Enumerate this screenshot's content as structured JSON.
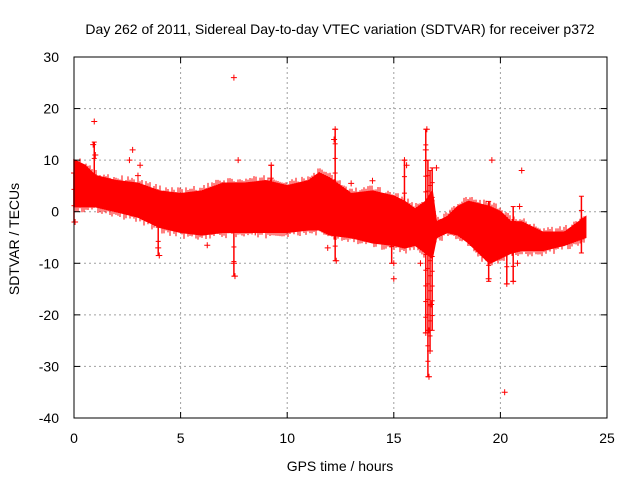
{
  "colors": {
    "series": "#ff0000",
    "axis": "#000000",
    "grid": "#a0a0a0",
    "background": "#ffffff"
  },
  "chart_data": {
    "type": "scatter",
    "title": "Day 262 of 2011, Sidereal Day-to-day VTEC variation (SDTVAR) for receiver p372",
    "xlabel": "GPS time / hours",
    "ylabel": "SDTVAR / TECUs",
    "xlim": [
      0,
      25
    ],
    "ylim": [
      -40,
      30
    ],
    "x_ticks": [
      0,
      5,
      10,
      15,
      20,
      25
    ],
    "x_tick_labels": [
      "0",
      "5",
      "10",
      "15",
      "20",
      "25"
    ],
    "y_ticks": [
      -40,
      -30,
      -20,
      -10,
      0,
      10,
      20,
      30
    ],
    "y_tick_labels": [
      "-40",
      "-30",
      "-20",
      "-10",
      "0",
      "10",
      "20",
      "30"
    ],
    "grid": true,
    "marker": "+",
    "band": {
      "x": [
        0,
        0.5,
        1,
        2,
        3,
        4,
        5,
        6,
        7,
        8,
        9,
        10,
        11,
        11.5,
        12,
        13,
        14,
        15,
        15.5,
        16,
        16.5,
        16.8,
        17,
        17.5,
        18,
        18.5,
        19,
        19.5,
        20,
        20.5,
        21,
        22,
        23,
        24
      ],
      "upper": [
        10,
        9,
        7,
        6,
        5.5,
        4,
        3.5,
        4,
        5.5,
        5.5,
        6,
        5,
        6,
        7.5,
        6.5,
        3.5,
        4,
        3,
        2,
        0.5,
        2,
        4,
        -2,
        -1,
        1,
        2,
        1.5,
        1,
        0,
        -2,
        -2,
        -4,
        -4,
        -1
      ],
      "lower": [
        1,
        1,
        1,
        0,
        -1,
        -3,
        -4,
        -4.5,
        -4,
        -4,
        -4,
        -4,
        -3.5,
        -3.5,
        -4.5,
        -5,
        -6,
        -6.5,
        -7,
        -6.5,
        -8,
        -9,
        -5,
        -4,
        -4.5,
        -6,
        -8,
        -10,
        -9,
        -8,
        -7.5,
        -7.5,
        -6.5,
        -5
      ]
    },
    "outliers": [
      {
        "x": 0.0,
        "y": 7.5
      },
      {
        "x": 0.05,
        "y": -2
      },
      {
        "x": 0.95,
        "y": 17.5
      },
      {
        "x": 0.9,
        "y": 13
      },
      {
        "x": 1.0,
        "y": 11
      },
      {
        "x": 2.75,
        "y": 12
      },
      {
        "x": 2.6,
        "y": 10
      },
      {
        "x": 3.1,
        "y": 9
      },
      {
        "x": 3.0,
        "y": 7
      },
      {
        "x": 3.95,
        "y": -7
      },
      {
        "x": 4.0,
        "y": -8.5
      },
      {
        "x": 6.25,
        "y": -6.5
      },
      {
        "x": 7.5,
        "y": 26
      },
      {
        "x": 7.7,
        "y": 10
      },
      {
        "x": 7.5,
        "y": -10
      },
      {
        "x": 7.55,
        "y": -12.5
      },
      {
        "x": 8.5,
        "y": -4
      },
      {
        "x": 9.25,
        "y": 9
      },
      {
        "x": 12.25,
        "y": 16
      },
      {
        "x": 12.2,
        "y": 14
      },
      {
        "x": 12.3,
        "y": -9.5
      },
      {
        "x": 11.9,
        "y": -7
      },
      {
        "x": 13.0,
        "y": 5.5
      },
      {
        "x": 14.0,
        "y": 6
      },
      {
        "x": 15.0,
        "y": -13
      },
      {
        "x": 15.0,
        "y": -10
      },
      {
        "x": 15.5,
        "y": 10
      },
      {
        "x": 15.6,
        "y": 9
      },
      {
        "x": 16.25,
        "y": -10
      },
      {
        "x": 16.5,
        "y": -23.5
      },
      {
        "x": 16.65,
        "y": -32
      },
      {
        "x": 16.7,
        "y": -27
      },
      {
        "x": 16.65,
        "y": -23
      },
      {
        "x": 16.75,
        "y": -18
      },
      {
        "x": 16.55,
        "y": 16
      },
      {
        "x": 16.5,
        "y": 12
      },
      {
        "x": 17.0,
        "y": 8.5
      },
      {
        "x": 19.6,
        "y": 10
      },
      {
        "x": 19.45,
        "y": -13
      },
      {
        "x": 20.2,
        "y": -35
      },
      {
        "x": 20.3,
        "y": -14
      },
      {
        "x": 20.6,
        "y": -13.5
      },
      {
        "x": 20.8,
        "y": -10
      },
      {
        "x": 21.0,
        "y": 8
      },
      {
        "x": 20.9,
        "y": 1
      }
    ],
    "spikes": [
      {
        "x": 0.0,
        "ymin": -2,
        "ymax": 7.5
      },
      {
        "x": 0.95,
        "ymin": 4,
        "ymax": 13.5
      },
      {
        "x": 3.95,
        "ymin": -8.5,
        "ymax": -3
      },
      {
        "x": 7.5,
        "ymin": -12.5,
        "ymax": -4
      },
      {
        "x": 9.25,
        "ymin": 4,
        "ymax": 9
      },
      {
        "x": 12.25,
        "ymin": -9.5,
        "ymax": 16
      },
      {
        "x": 14.9,
        "ymin": -10,
        "ymax": 3
      },
      {
        "x": 15.5,
        "ymin": -6,
        "ymax": 10
      },
      {
        "x": 16.5,
        "ymin": -23.5,
        "ymax": 16
      },
      {
        "x": 16.6,
        "ymin": -32,
        "ymax": 10
      },
      {
        "x": 16.7,
        "ymin": -27,
        "ymax": 8
      },
      {
        "x": 16.8,
        "ymin": -23,
        "ymax": 8.5
      },
      {
        "x": 19.45,
        "ymin": -13.5,
        "ymax": 2
      },
      {
        "x": 20.3,
        "ymin": -14,
        "ymax": -4
      },
      {
        "x": 20.6,
        "ymin": -13.5,
        "ymax": 1
      },
      {
        "x": 23.8,
        "ymin": -8,
        "ymax": 3
      }
    ]
  }
}
